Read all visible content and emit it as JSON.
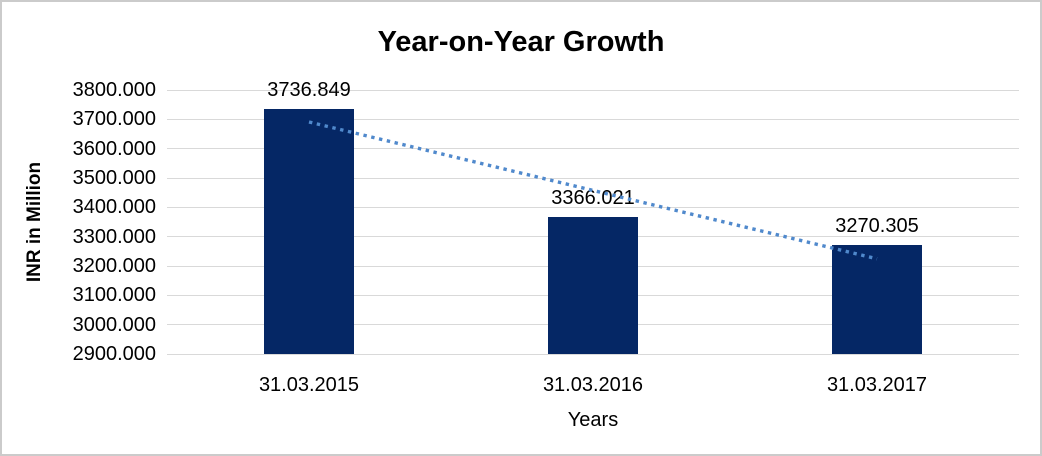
{
  "chart_data": {
    "type": "bar",
    "title": "Year-on-Year Growth",
    "categories": [
      "31.03.2015",
      "31.03.2016",
      "31.03.2017"
    ],
    "values": [
      3736.849,
      3366.021,
      3270.305
    ],
    "data_labels": [
      "3736.849",
      "3366.021",
      "3270.305"
    ],
    "xlabel": "Years",
    "ylabel": "INR in Million",
    "ylim": [
      2900,
      3800
    ],
    "ytick_step": 100,
    "ytick_decimals": 3,
    "grid": true,
    "legend": "none",
    "trendline": {
      "type": "linear",
      "style": "dotted"
    },
    "colors": {
      "bar": "#052765",
      "gridline": "#d9d9d9",
      "axis_line": "#d9d9d9",
      "text": "#000000",
      "trendline": "#5089cc"
    }
  }
}
